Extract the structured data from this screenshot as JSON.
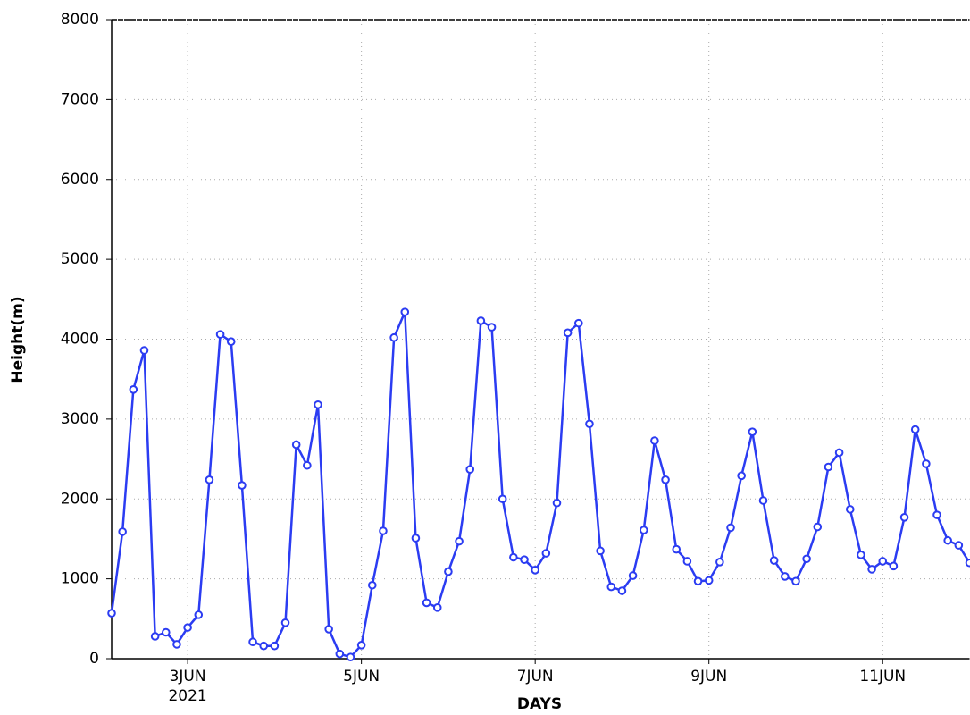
{
  "chart_data": {
    "type": "line",
    "ylabel": "Height(m)",
    "xlabel": "DAYS",
    "x_year_label": "2021",
    "x": [
      2.125,
      2.25,
      2.375,
      2.5,
      2.625,
      2.75,
      2.875,
      3.0,
      3.125,
      3.25,
      3.375,
      3.5,
      3.625,
      3.75,
      3.875,
      4.0,
      4.125,
      4.25,
      4.375,
      4.5,
      4.625,
      4.75,
      4.875,
      5.0,
      5.125,
      5.25,
      5.375,
      5.5,
      5.625,
      5.75,
      5.875,
      6.0,
      6.125,
      6.25,
      6.375,
      6.5,
      6.625,
      6.75,
      6.875,
      7.0,
      7.125,
      7.25,
      7.375,
      7.5,
      7.625,
      7.75,
      7.875,
      8.0,
      8.125,
      8.25,
      8.375,
      8.5,
      8.625,
      8.75,
      8.875,
      9.0,
      9.125,
      9.25,
      9.375,
      9.5,
      9.625,
      9.75,
      9.875,
      10.0,
      10.125,
      10.25,
      10.375,
      10.5,
      10.625,
      10.75,
      10.875,
      11.0,
      11.125,
      11.25,
      11.375,
      11.5,
      11.625,
      11.75,
      11.875,
      12.0
    ],
    "series": [
      {
        "name": "Height",
        "color": "#2b3cf2",
        "values": [
          570,
          1590,
          3370,
          3860,
          280,
          330,
          180,
          390,
          550,
          2240,
          4060,
          3970,
          2170,
          210,
          160,
          160,
          450,
          2680,
          2420,
          3180,
          370,
          60,
          20,
          170,
          920,
          1600,
          4020,
          4340,
          1510,
          700,
          640,
          1090,
          1470,
          2370,
          4230,
          4150,
          2000,
          1270,
          1240,
          1110,
          1320,
          1950,
          4080,
          4200,
          2940,
          1350,
          900,
          850,
          1040,
          1610,
          2730,
          2240,
          1370,
          1220,
          970,
          980,
          1210,
          1640,
          2290,
          2840,
          1980,
          1230,
          1030,
          970,
          1250,
          1650,
          2400,
          2580,
          1870,
          1300,
          1120,
          1220,
          1160,
          1770,
          2870,
          2440,
          1800,
          1480,
          1420,
          1200
        ]
      }
    ],
    "xlim": [
      2.125,
      12.0
    ],
    "xticks": [
      {
        "value": 3,
        "label": "3JUN"
      },
      {
        "value": 5,
        "label": "5JUN"
      },
      {
        "value": 7,
        "label": "7JUN"
      },
      {
        "value": 9,
        "label": "9JUN"
      },
      {
        "value": 11,
        "label": "11JUN"
      }
    ],
    "ylim": [
      0,
      8000
    ],
    "yticks": [
      0,
      1000,
      2000,
      3000,
      4000,
      5000,
      6000,
      7000,
      8000
    ],
    "grid": true
  }
}
